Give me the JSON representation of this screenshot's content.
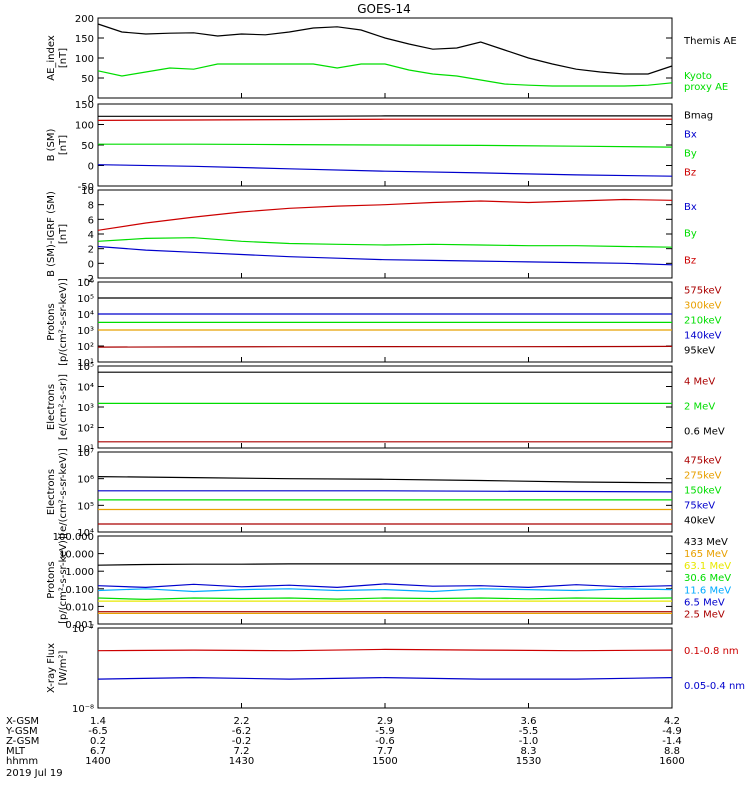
{
  "title": "GOES-14",
  "x_axis": {
    "rows": [
      {
        "label": "X-GSM",
        "values": [
          "1.4",
          "2.2",
          "2.9",
          "3.6",
          "4.2"
        ]
      },
      {
        "label": "Y-GSM",
        "values": [
          "-6.5",
          "-6.2",
          "-5.9",
          "-5.5",
          "-4.9"
        ]
      },
      {
        "label": "Z-GSM",
        "values": [
          "0.2",
          "-0.2",
          "-0.6",
          "-1.0",
          "-1.4"
        ]
      },
      {
        "label": "MLT",
        "values": [
          "6.7",
          "7.2",
          "7.7",
          "8.3",
          "8.8"
        ]
      },
      {
        "label": "hhmm",
        "values": [
          "1400",
          "1430",
          "1500",
          "1530",
          "1600"
        ]
      }
    ],
    "date": "2019 Jul 19"
  },
  "colors": {
    "black": "#000000",
    "green": "#00dd00",
    "blue": "#0000cc",
    "red": "#cc0000",
    "orange": "#e8a000",
    "lightblue": "#00aaff",
    "yellow": "#e8e800",
    "darkred": "#aa0000"
  },
  "chart_data": [
    {
      "type": "line",
      "ylabel": "AE_index\n[nT]",
      "ylim": [
        0,
        200
      ],
      "yticks": [
        "0",
        "50",
        "100",
        "150",
        "200"
      ],
      "x": [
        0,
        5,
        10,
        15,
        20,
        25,
        30,
        35,
        40,
        45,
        50,
        55,
        60,
        65,
        70,
        75,
        80,
        85,
        90,
        95,
        100,
        105,
        110,
        115,
        120
      ],
      "series": [
        {
          "name": "Themis AE",
          "color": "black",
          "values": [
            185,
            165,
            160,
            162,
            163,
            155,
            160,
            158,
            165,
            175,
            178,
            170,
            150,
            135,
            122,
            125,
            140,
            120,
            100,
            85,
            72,
            65,
            60,
            60,
            80
          ]
        },
        {
          "name": "Kyoto\nproxy AE",
          "color": "green",
          "values": [
            68,
            55,
            65,
            75,
            72,
            85,
            85,
            85,
            85,
            85,
            75,
            85,
            85,
            70,
            60,
            55,
            45,
            35,
            32,
            30,
            30,
            30,
            30,
            32,
            38
          ]
        }
      ]
    },
    {
      "type": "line",
      "ylabel": "B (SM)\n[nT]",
      "ylim": [
        -60,
        140
      ],
      "yticks": [
        "-50",
        "0",
        "50",
        "100",
        "150"
      ],
      "x": [
        0,
        20,
        40,
        60,
        80,
        100,
        120
      ],
      "series": [
        {
          "name": "Bmag",
          "color": "black",
          "values": [
            110,
            110,
            110,
            111,
            111,
            111,
            111
          ]
        },
        {
          "name": "Bx",
          "color": "blue",
          "values": [
            -8,
            -12,
            -18,
            -24,
            -28,
            -33,
            -36
          ]
        },
        {
          "name": "By",
          "color": "green",
          "values": [
            42,
            42,
            41,
            40,
            39,
            37,
            35
          ]
        },
        {
          "name": "Bz",
          "color": "red",
          "values": [
            100,
            101,
            102,
            103,
            103,
            103,
            103
          ]
        }
      ]
    },
    {
      "type": "line",
      "ylabel": "B (SM)-IGRF (SM)\n[nT]",
      "ylim": [
        -2,
        10
      ],
      "yticks": [
        "-2",
        "0",
        "2",
        "4",
        "6",
        "8",
        "10"
      ],
      "x": [
        0,
        10,
        20,
        30,
        40,
        50,
        60,
        70,
        80,
        90,
        100,
        110,
        120
      ],
      "series": [
        {
          "name": "Bx",
          "color": "blue",
          "values": [
            2.3,
            1.8,
            1.5,
            1.2,
            0.9,
            0.7,
            0.5,
            0.4,
            0.3,
            0.2,
            0.1,
            0.0,
            -0.2
          ]
        },
        {
          "name": "By",
          "color": "green",
          "values": [
            3.0,
            3.4,
            3.5,
            3.0,
            2.7,
            2.6,
            2.5,
            2.6,
            2.5,
            2.4,
            2.4,
            2.3,
            2.2
          ]
        },
        {
          "name": "Bz",
          "color": "red",
          "values": [
            4.5,
            5.5,
            6.3,
            7.0,
            7.5,
            7.8,
            8.0,
            8.3,
            8.5,
            8.3,
            8.5,
            8.7,
            8.6
          ]
        }
      ]
    },
    {
      "type": "line",
      "scale": "log",
      "ylabel": "Protons\n[p/(cm²-s-sr-keV)]",
      "ylim": [
        10,
        1000000
      ],
      "yticks": [
        "10¹",
        "10²",
        "10³",
        "10⁴",
        "10⁵",
        "10⁶"
      ],
      "x": [
        0,
        20,
        40,
        60,
        80,
        100,
        120
      ],
      "series": [
        {
          "name": "575keV",
          "color": "darkred",
          "values": [
            85,
            88,
            90,
            92,
            90,
            92,
            95
          ]
        },
        {
          "name": "300keV",
          "color": "orange",
          "values": [
            1000,
            1000,
            1000,
            1000,
            1000,
            1000,
            1000
          ]
        },
        {
          "name": "210keV",
          "color": "green",
          "values": [
            3000,
            3000,
            3000,
            3000,
            3000,
            3000,
            3000
          ]
        },
        {
          "name": "140keV",
          "color": "blue",
          "values": [
            10000,
            10000,
            10000,
            10000,
            10000,
            10000,
            10000
          ]
        },
        {
          "name": "95keV",
          "color": "black",
          "values": [
            100000,
            100000,
            100000,
            100000,
            100000,
            100000,
            100000
          ]
        }
      ]
    },
    {
      "type": "line",
      "scale": "log",
      "ylabel": "Electrons\n[e/(cm²-s-sr)]",
      "ylim": [
        10,
        100000
      ],
      "yticks": [
        "10¹",
        "10²",
        "10³",
        "10⁴",
        "10⁵"
      ],
      "x": [
        0,
        20,
        40,
        60,
        80,
        100,
        120
      ],
      "series": [
        {
          "name": "4 MeV",
          "color": "darkred",
          "values": [
            20,
            20,
            20,
            20,
            20,
            20,
            20
          ]
        },
        {
          "name": "2 MeV",
          "color": "green",
          "values": [
            1500,
            1500,
            1500,
            1500,
            1500,
            1500,
            1500
          ]
        },
        {
          "name": "0.6 MeV",
          "color": "black",
          "values": [
            50000,
            50000,
            50000,
            50000,
            50000,
            50000,
            50000
          ]
        }
      ]
    },
    {
      "type": "line",
      "scale": "log",
      "ylabel": "Electrons\n[e/(cm²-s-sr-keV)]",
      "ylim": [
        10000,
        10000000
      ],
      "yticks": [
        "10⁴",
        "10⁵",
        "10⁶",
        "10⁷"
      ],
      "x": [
        0,
        20,
        40,
        60,
        80,
        100,
        120
      ],
      "series": [
        {
          "name": "475keV",
          "color": "darkred",
          "values": [
            20000,
            20000,
            20000,
            20000,
            20000,
            20000,
            20000
          ]
        },
        {
          "name": "275keV",
          "color": "orange",
          "values": [
            70000,
            70000,
            70000,
            70000,
            70000,
            70000,
            70000
          ]
        },
        {
          "name": "150keV",
          "color": "green",
          "values": [
            160000,
            160000,
            160000,
            160000,
            160000,
            160000,
            160000
          ]
        },
        {
          "name": "75keV",
          "color": "blue",
          "values": [
            350000,
            350000,
            350000,
            350000,
            340000,
            330000,
            320000
          ]
        },
        {
          "name": "40keV",
          "color": "black",
          "values": [
            1200000,
            1100000,
            1000000,
            950000,
            850000,
            750000,
            700000
          ]
        }
      ]
    },
    {
      "type": "line",
      "scale": "log",
      "ylabel": "Protons\n[p/(cm²-s-sr-keV)]",
      "ylim": [
        0.001,
        100
      ],
      "yticks": [
        "0.001",
        "0.010",
        "0.100",
        "1.000",
        "10.000",
        "100.000"
      ],
      "x": [
        0,
        10,
        20,
        30,
        40,
        50,
        60,
        70,
        80,
        90,
        100,
        110,
        120
      ],
      "series": [
        {
          "name": "433 MeV",
          "color": "black",
          "values": [
            2.2,
            2.4,
            2.5,
            2.5,
            2.6,
            2.6,
            2.6,
            2.6,
            2.6,
            2.6,
            2.6,
            2.6,
            2.6
          ]
        },
        {
          "name": "165 MeV",
          "color": "orange",
          "values": [
            0.004,
            0.004,
            0.004,
            0.004,
            0.004,
            0.004,
            0.004,
            0.004,
            0.004,
            0.004,
            0.004,
            0.004,
            0.004
          ]
        },
        {
          "name": "63.1 MeV",
          "color": "yellow",
          "values": [
            0.02,
            0.02,
            0.02,
            0.02,
            0.02,
            0.02,
            0.02,
            0.02,
            0.02,
            0.02,
            0.02,
            0.02,
            0.02
          ]
        },
        {
          "name": "30.6 MeV",
          "color": "green",
          "values": [
            0.03,
            0.025,
            0.03,
            0.028,
            0.03,
            0.026,
            0.03,
            0.028,
            0.03,
            0.027,
            0.03,
            0.028,
            0.03
          ]
        },
        {
          "name": "11.6 MeV",
          "color": "lightblue",
          "values": [
            0.08,
            0.1,
            0.07,
            0.09,
            0.1,
            0.08,
            0.09,
            0.07,
            0.1,
            0.09,
            0.08,
            0.1,
            0.09
          ]
        },
        {
          "name": "6.5 MeV",
          "color": "blue",
          "values": [
            0.15,
            0.12,
            0.18,
            0.13,
            0.16,
            0.12,
            0.19,
            0.14,
            0.15,
            0.12,
            0.17,
            0.13,
            0.15
          ]
        },
        {
          "name": "2.5 MeV",
          "color": "darkred",
          "values": [
            0.005,
            0.005,
            0.005,
            0.005,
            0.005,
            0.005,
            0.005,
            0.005,
            0.005,
            0.005,
            0.005,
            0.005,
            0.005
          ]
        }
      ]
    },
    {
      "type": "line",
      "scale": "log",
      "ylabel": "X-ray Flux\n[W/m²]",
      "ylim": [
        1e-08,
        1e-07
      ],
      "yticks": [
        "10⁻⁸",
        "10⁻⁷"
      ],
      "x": [
        0,
        20,
        40,
        60,
        80,
        100,
        120
      ],
      "series": [
        {
          "name": "0.1-0.8 nm",
          "color": "red",
          "values": [
            5.2e-08,
            5.3e-08,
            5.2e-08,
            5.4e-08,
            5.3e-08,
            5.2e-08,
            5.3e-08
          ]
        },
        {
          "name": "0.05-0.4 nm",
          "color": "blue",
          "values": [
            2.3e-08,
            2.4e-08,
            2.3e-08,
            2.4e-08,
            2.3e-08,
            2.3e-08,
            2.4e-08
          ]
        }
      ]
    }
  ]
}
